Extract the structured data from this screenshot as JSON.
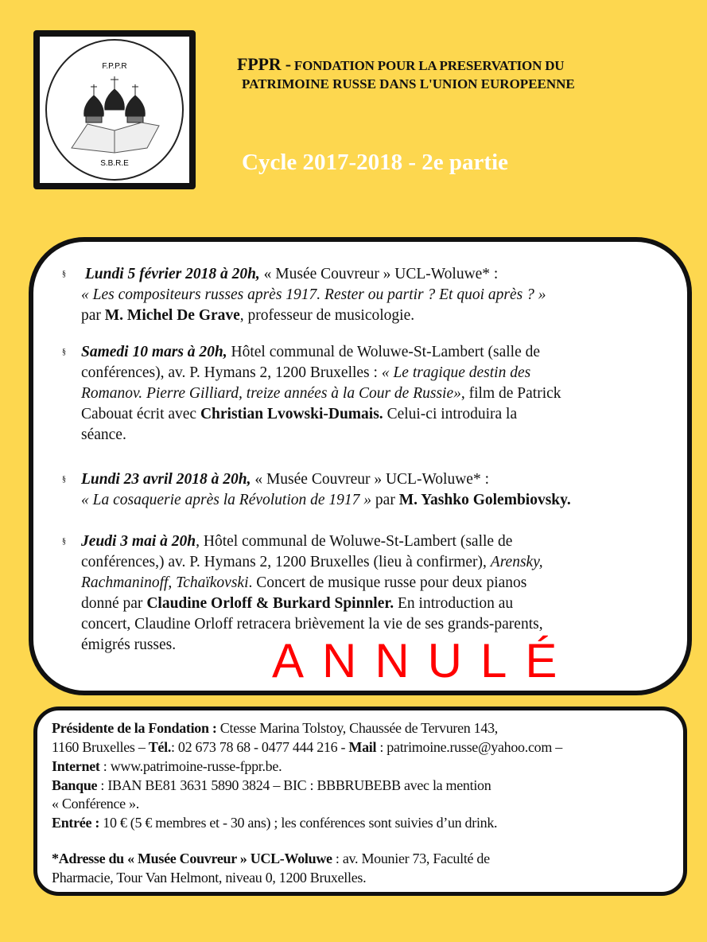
{
  "logo": {
    "top_text": "F.P.P.R",
    "bottom_text": "S.B.R.E"
  },
  "header": {
    "title_abbr": "FPPR -",
    "title_line1": "FONDATION POUR LA PRESERVATION DU",
    "title_line2": "PATRIMOINE RUSSE DANS  L'UNION EUROPEENNE",
    "cycle": "Cycle  2017-2018 - 2e partie"
  },
  "bullet": "§",
  "events": [
    {
      "l1a": "Lundi 5 février 2018 à 20h,",
      "l1b": " « Musée Couvreur » UCL-Woluwe* :",
      "l2": "« Les compositeurs russes après 1917. Rester ou partir ? Et quoi après ? »",
      "l3a": "par ",
      "l3b": "M. Michel De Grave",
      "l3c": ", professeur de musicologie."
    },
    {
      "l1a": "Samedi 10 mars à 20h,",
      "l1b": " Hôtel communal de Woluwe-St-Lambert (salle de",
      "l2a": "conférences), av. P. Hymans 2, 1200 Bruxelles : ",
      "l2b": "« Le tragique destin des",
      "l3": "Romanov. Pierre Gilliard, treize années à la Cour de Russie»",
      "l3b": ", film de Patrick",
      "l4a": "Cabouat écrit avec ",
      "l4b": "Christian  Lvowski-Dumais.",
      "l4c": " Celui-ci introduira la",
      "l5": "séance."
    },
    {
      "l1a": "Lundi 23 avril 2018 à 20h,",
      "l1b": " « Musée Couvreur » UCL-Woluwe* :",
      "l2a": "« La cosaquerie après la Révolution de 1917 »",
      "l2b": " par ",
      "l2c": "M. Yashko Golembiovsky."
    },
    {
      "l1a": "Jeudi 3 mai à 20h",
      "l1b": ", Hôtel communal de Woluwe-St-Lambert (salle de",
      "l2a": "conférences,) av. P. Hymans 2, 1200 Bruxelles (lieu à confirmer), ",
      "l2b": "Arensky,",
      "l3a": "Rachmaninoff,  Tchaïkovski",
      "l3b": ". Concert de musique russe pour deux pianos",
      "l4a": "donné par ",
      "l4b": "Claudine Orloff & Burkard Spinnler.",
      "l4c": " En introduction au",
      "l5": "concert, Claudine Orloff retracera brièvement la vie de ses grands-parents,",
      "l6": "émigrés  russes.",
      "stamp": "ANNULÉ"
    }
  ],
  "info": {
    "l1a": "Présidente de la Fondation :",
    "l1b": " Ctesse  Marina Tolstoy, Chaussée de Tervuren 143,",
    "l2a": "1160 Bruxelles – ",
    "l2b": "Tél.",
    "l2c": ": 02 673 78 68 - 0477 444 216 - ",
    "l2d": "Mail",
    "l2e": " : patrimoine.russe@yahoo.com –",
    "l3a": "Internet",
    "l3b": " : www.patrimoine-russe-fppr.be.",
    "l4a": "Banque",
    "l4b": " : IBAN BE81 3631 5890 3824 – BIC : BBBRUBEBB avec la mention",
    "l5": "« Conférence ».",
    "l6a": "Entrée :",
    "l6b": " 10 € (5 € membres et - 30 ans) ; les conférences sont suivies d’un drink.",
    "l7a": "*Adresse du « Musée Couvreur » UCL-Woluwe",
    "l7b": " : av. Mounier 73, Faculté de",
    "l8": "Pharmacie, Tour Van Helmont, niveau 0, 1200 Bruxelles."
  },
  "colors": {
    "background": "#fdd74f",
    "stamp": "#ff0000"
  }
}
